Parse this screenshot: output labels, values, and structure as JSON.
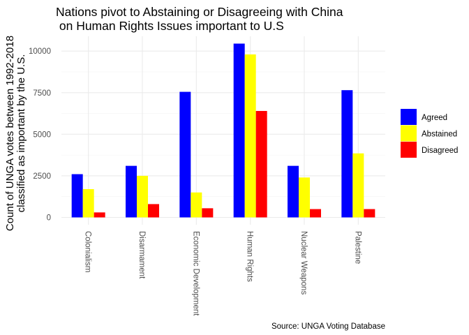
{
  "chart_data": {
    "type": "bar",
    "title": [
      "Nations pivot to Abstaining or Disagreeing with China",
      " on Human Rights Issues important to U.S"
    ],
    "xlabel": "",
    "ylabel": [
      "Count of UNGA votes between 1992-2018",
      "classified as important by the U.S."
    ],
    "caption": "Source: UNGA Voting Database",
    "categories": [
      "Colonialism",
      "Disarmament",
      "Economic Development",
      "Human Rights",
      "Nuclear Weapons",
      "Palestine"
    ],
    "ylim": [
      0,
      10500
    ],
    "yticks": [
      0,
      2500,
      5000,
      7500,
      10000
    ],
    "ytick_labels": [
      "0",
      "2500",
      "5000",
      "7500",
      "10000"
    ],
    "grid": true,
    "legend_position": "right",
    "series": [
      {
        "name": "Agreed",
        "color": "#0000ff",
        "values": [
          2600,
          3100,
          7550,
          10450,
          3100,
          7650
        ]
      },
      {
        "name": "Abstained",
        "color": "#ffff00",
        "values": [
          1700,
          2500,
          1500,
          9800,
          2400,
          3850
        ]
      },
      {
        "name": "Disagreed",
        "color": "#ff0000",
        "values": [
          300,
          800,
          550,
          6400,
          500,
          500
        ]
      }
    ]
  }
}
